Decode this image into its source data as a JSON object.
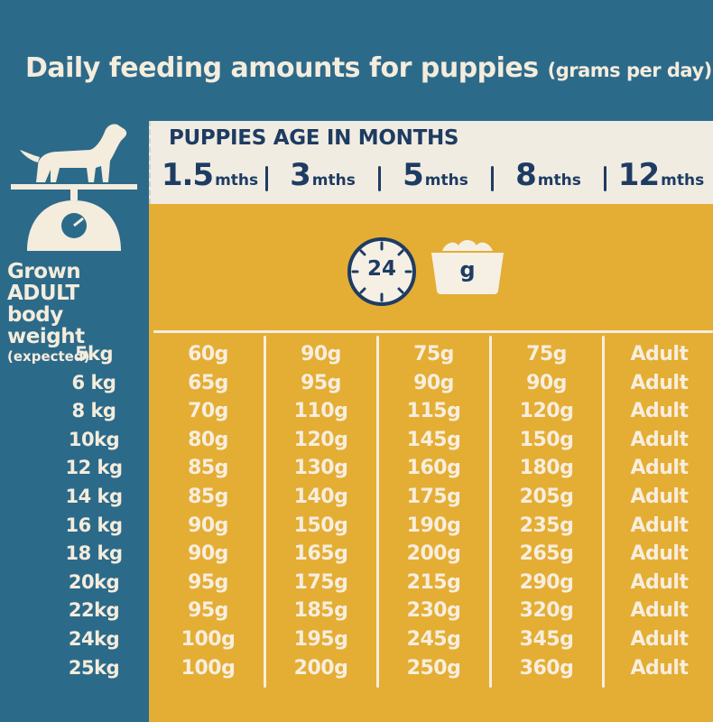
{
  "title": {
    "main": "Daily feeding amounts for puppies",
    "sub": "(grams per day):"
  },
  "row_header": {
    "line1": "Grown ADULT",
    "line2": "body weight",
    "line3": "(expected)"
  },
  "age_header": {
    "title": "PUPPIES AGE IN MONTHS",
    "ages": [
      {
        "num": "1.5",
        "unit": "mths"
      },
      {
        "num": "3",
        "unit": "mths"
      },
      {
        "num": "5",
        "unit": "mths"
      },
      {
        "num": "8",
        "unit": "mths"
      },
      {
        "num": "12",
        "unit": "mths"
      }
    ]
  },
  "legend": {
    "clock": "24",
    "bowl": "g"
  },
  "rows": [
    {
      "weight": "5kg",
      "values": [
        "60g",
        "90g",
        "75g",
        "75g",
        "Adult"
      ]
    },
    {
      "weight": "6 kg",
      "values": [
        "65g",
        "95g",
        "90g",
        "90g",
        "Adult"
      ]
    },
    {
      "weight": "8 kg",
      "values": [
        "70g",
        "110g",
        "115g",
        "120g",
        "Adult"
      ]
    },
    {
      "weight": "10kg",
      "values": [
        "80g",
        "120g",
        "145g",
        "150g",
        "Adult"
      ]
    },
    {
      "weight": "12 kg",
      "values": [
        "85g",
        "130g",
        "160g",
        "180g",
        "Adult"
      ]
    },
    {
      "weight": "14 kg",
      "values": [
        "85g",
        "140g",
        "175g",
        "205g",
        "Adult"
      ]
    },
    {
      "weight": "16 kg",
      "values": [
        "90g",
        "150g",
        "190g",
        "235g",
        "Adult"
      ]
    },
    {
      "weight": "18 kg",
      "values": [
        "90g",
        "165g",
        "200g",
        "265g",
        "Adult"
      ]
    },
    {
      "weight": "20kg",
      "values": [
        "95g",
        "175g",
        "215g",
        "290g",
        "Adult"
      ]
    },
    {
      "weight": "22kg",
      "values": [
        "95g",
        "185g",
        "230g",
        "320g",
        "Adult"
      ]
    },
    {
      "weight": "24kg",
      "values": [
        "100g",
        "195g",
        "245g",
        "345g",
        "Adult"
      ]
    },
    {
      "weight": "25kg",
      "values": [
        "100g",
        "200g",
        "250g",
        "360g",
        "Adult"
      ]
    }
  ],
  "colors": {
    "background": "#2c6a8a",
    "panel": "#e4ad34",
    "header": "#f1ece1",
    "text_dark": "#1e3c63",
    "text_light": "#f4ecdc"
  }
}
